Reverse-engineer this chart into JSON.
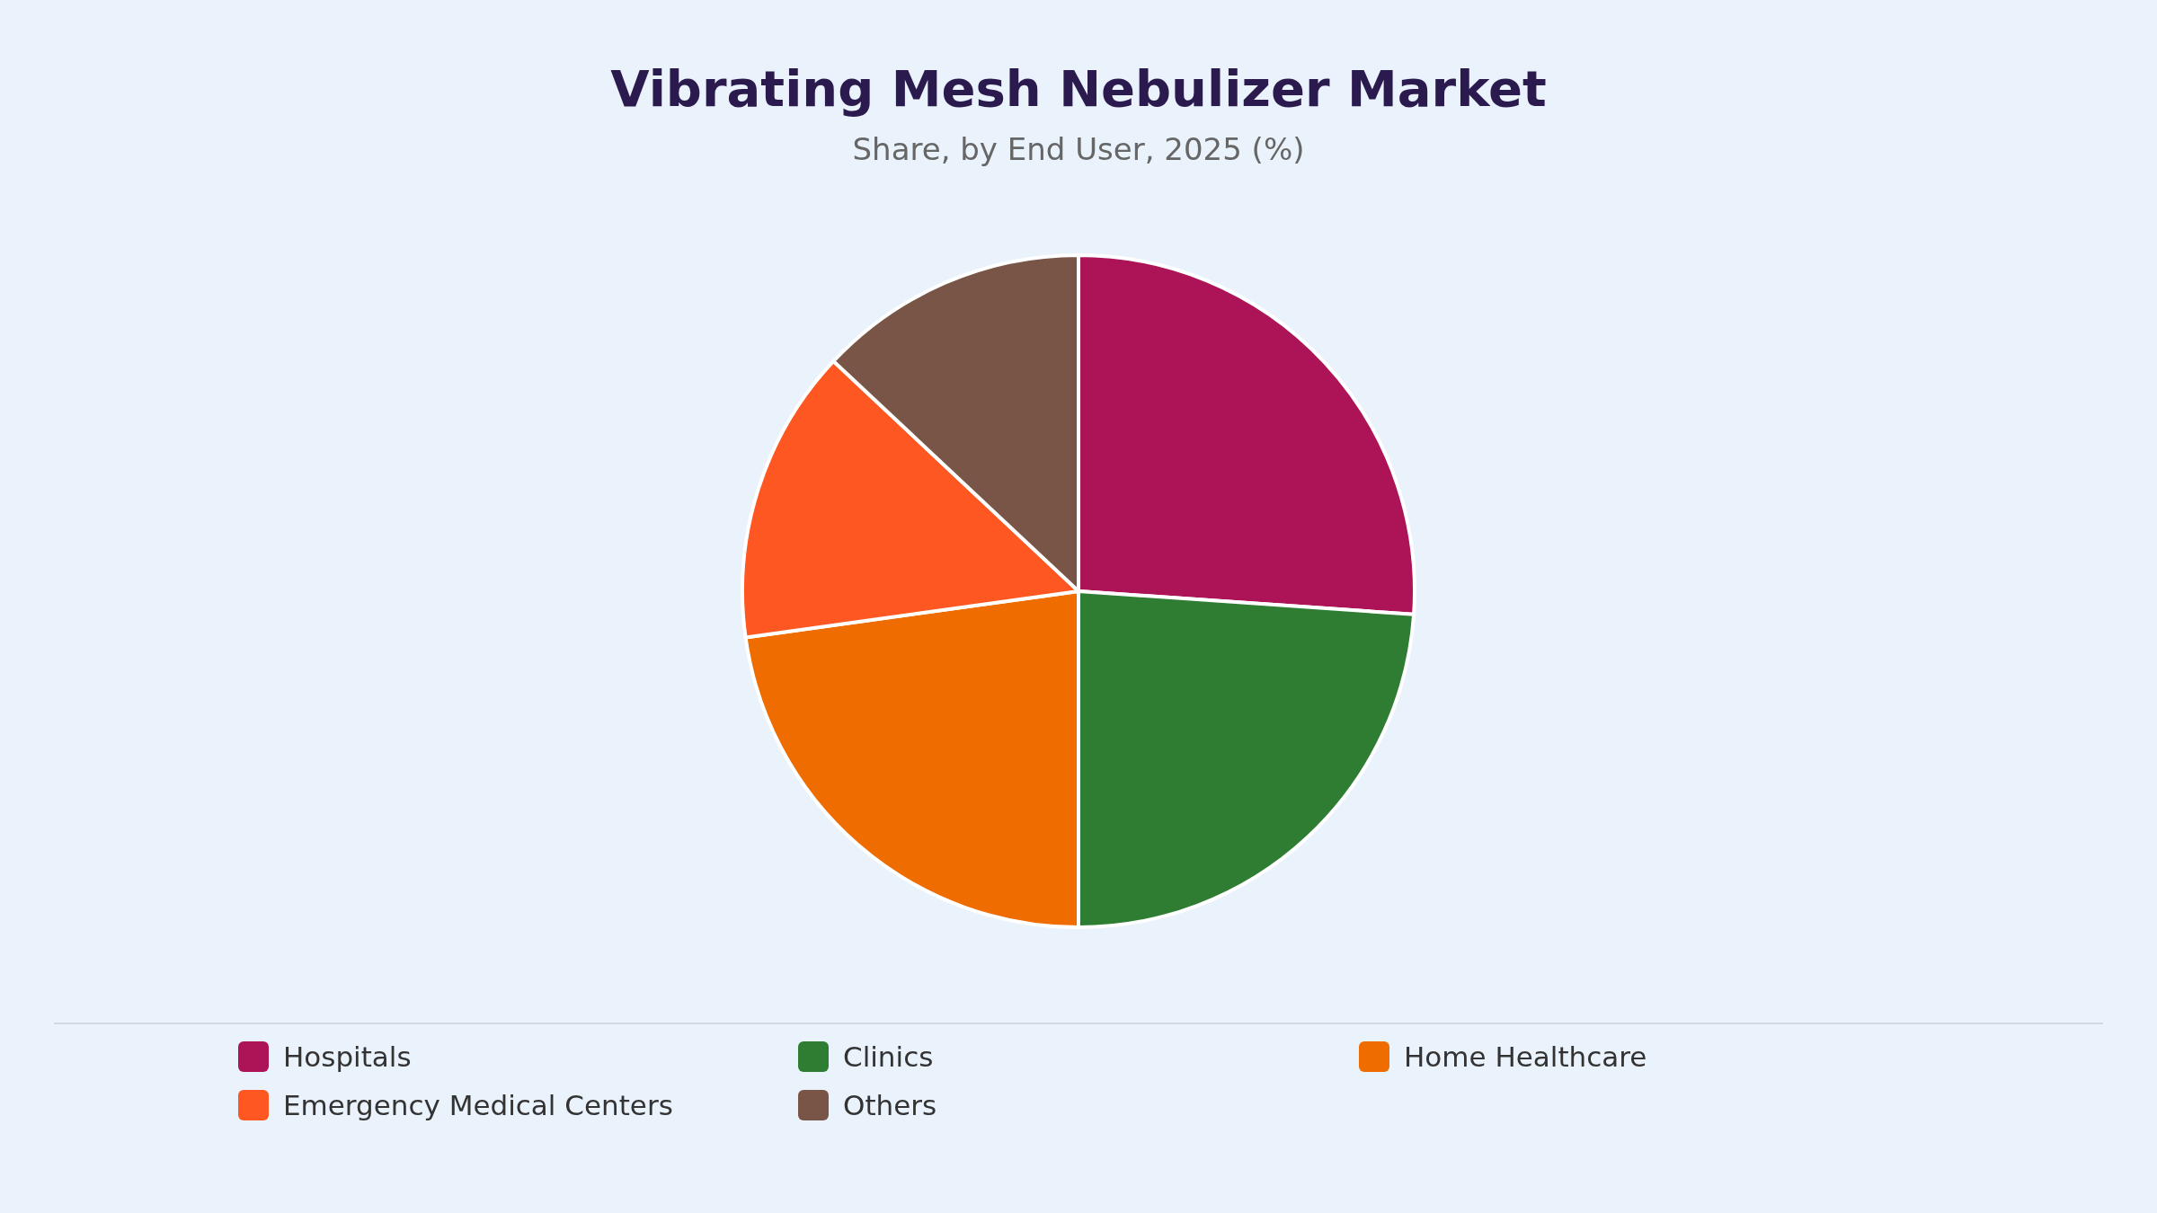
{
  "chart_data": {
    "type": "pie",
    "title": "Vibrating Mesh Nebulizer Market",
    "subtitle": "Share, by End User, 2025 (%)",
    "categories": [
      "Hospitals",
      "Clinics",
      "Home Healthcare",
      "Emergency Medical Centers",
      "Others"
    ],
    "values": [
      26.1,
      23.9,
      22.8,
      14.2,
      13.0
    ],
    "colors": [
      "#ad1457",
      "#2e7d32",
      "#ef6c00",
      "#ff5722",
      "#795548"
    ],
    "legend": "bottom"
  }
}
